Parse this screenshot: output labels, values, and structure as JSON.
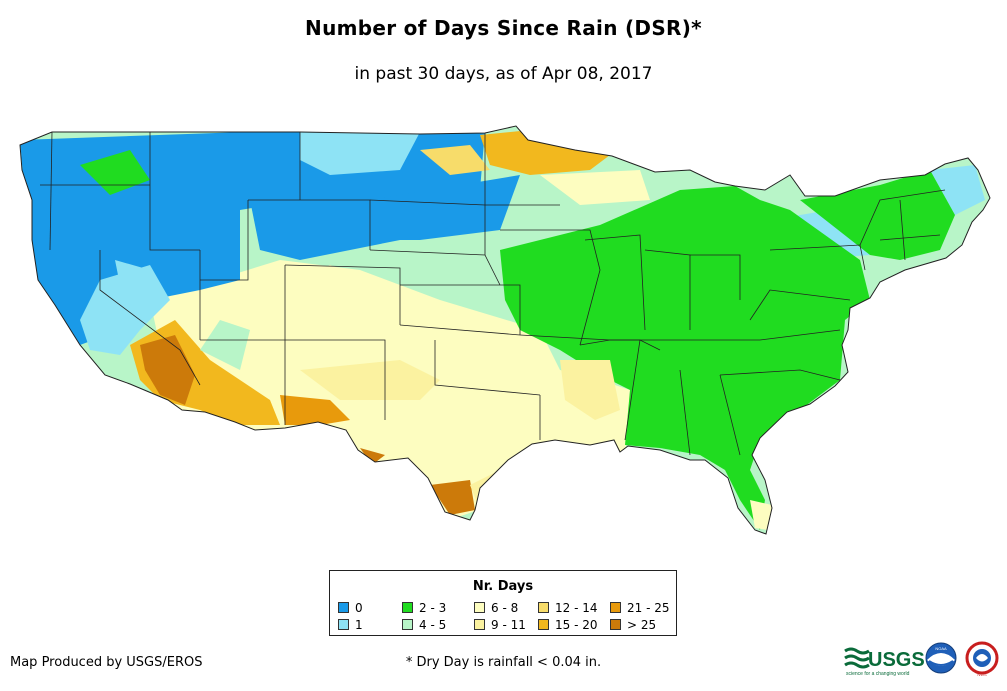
{
  "title": "Number of Days Since Rain (DSR)*",
  "subtitle": "in past 30 days, as of Apr 08, 2017",
  "legend": {
    "title": "Nr. Days",
    "items": [
      {
        "label": "0",
        "color": "#1a9ae8"
      },
      {
        "label": "1",
        "color": "#8ee3f5"
      },
      {
        "label": "2 - 3",
        "color": "#20dc20"
      },
      {
        "label": "4 - 5",
        "color": "#b8f5c8"
      },
      {
        "label": "6 - 8",
        "color": "#fdfdc0"
      },
      {
        "label": "9 - 11",
        "color": "#fbf2a0"
      },
      {
        "label": "12 - 14",
        "color": "#f7dc6a"
      },
      {
        "label": "15 - 20",
        "color": "#f2b81e"
      },
      {
        "label": "21 - 25",
        "color": "#e89a0c"
      },
      {
        "label": "> 25",
        "color": "#cc7a0a"
      }
    ]
  },
  "footer": {
    "credit": "Map Produced by USGS/EROS",
    "note": "* Dry Day is rainfall < 0.04 in."
  },
  "logos": {
    "usgs": "USGS",
    "usgs_tagline": "science for a changing world",
    "noaa": "NOAA",
    "nws": "NWS"
  },
  "icons": [
    "usgs-logo",
    "noaa-logo",
    "nws-logo"
  ]
}
